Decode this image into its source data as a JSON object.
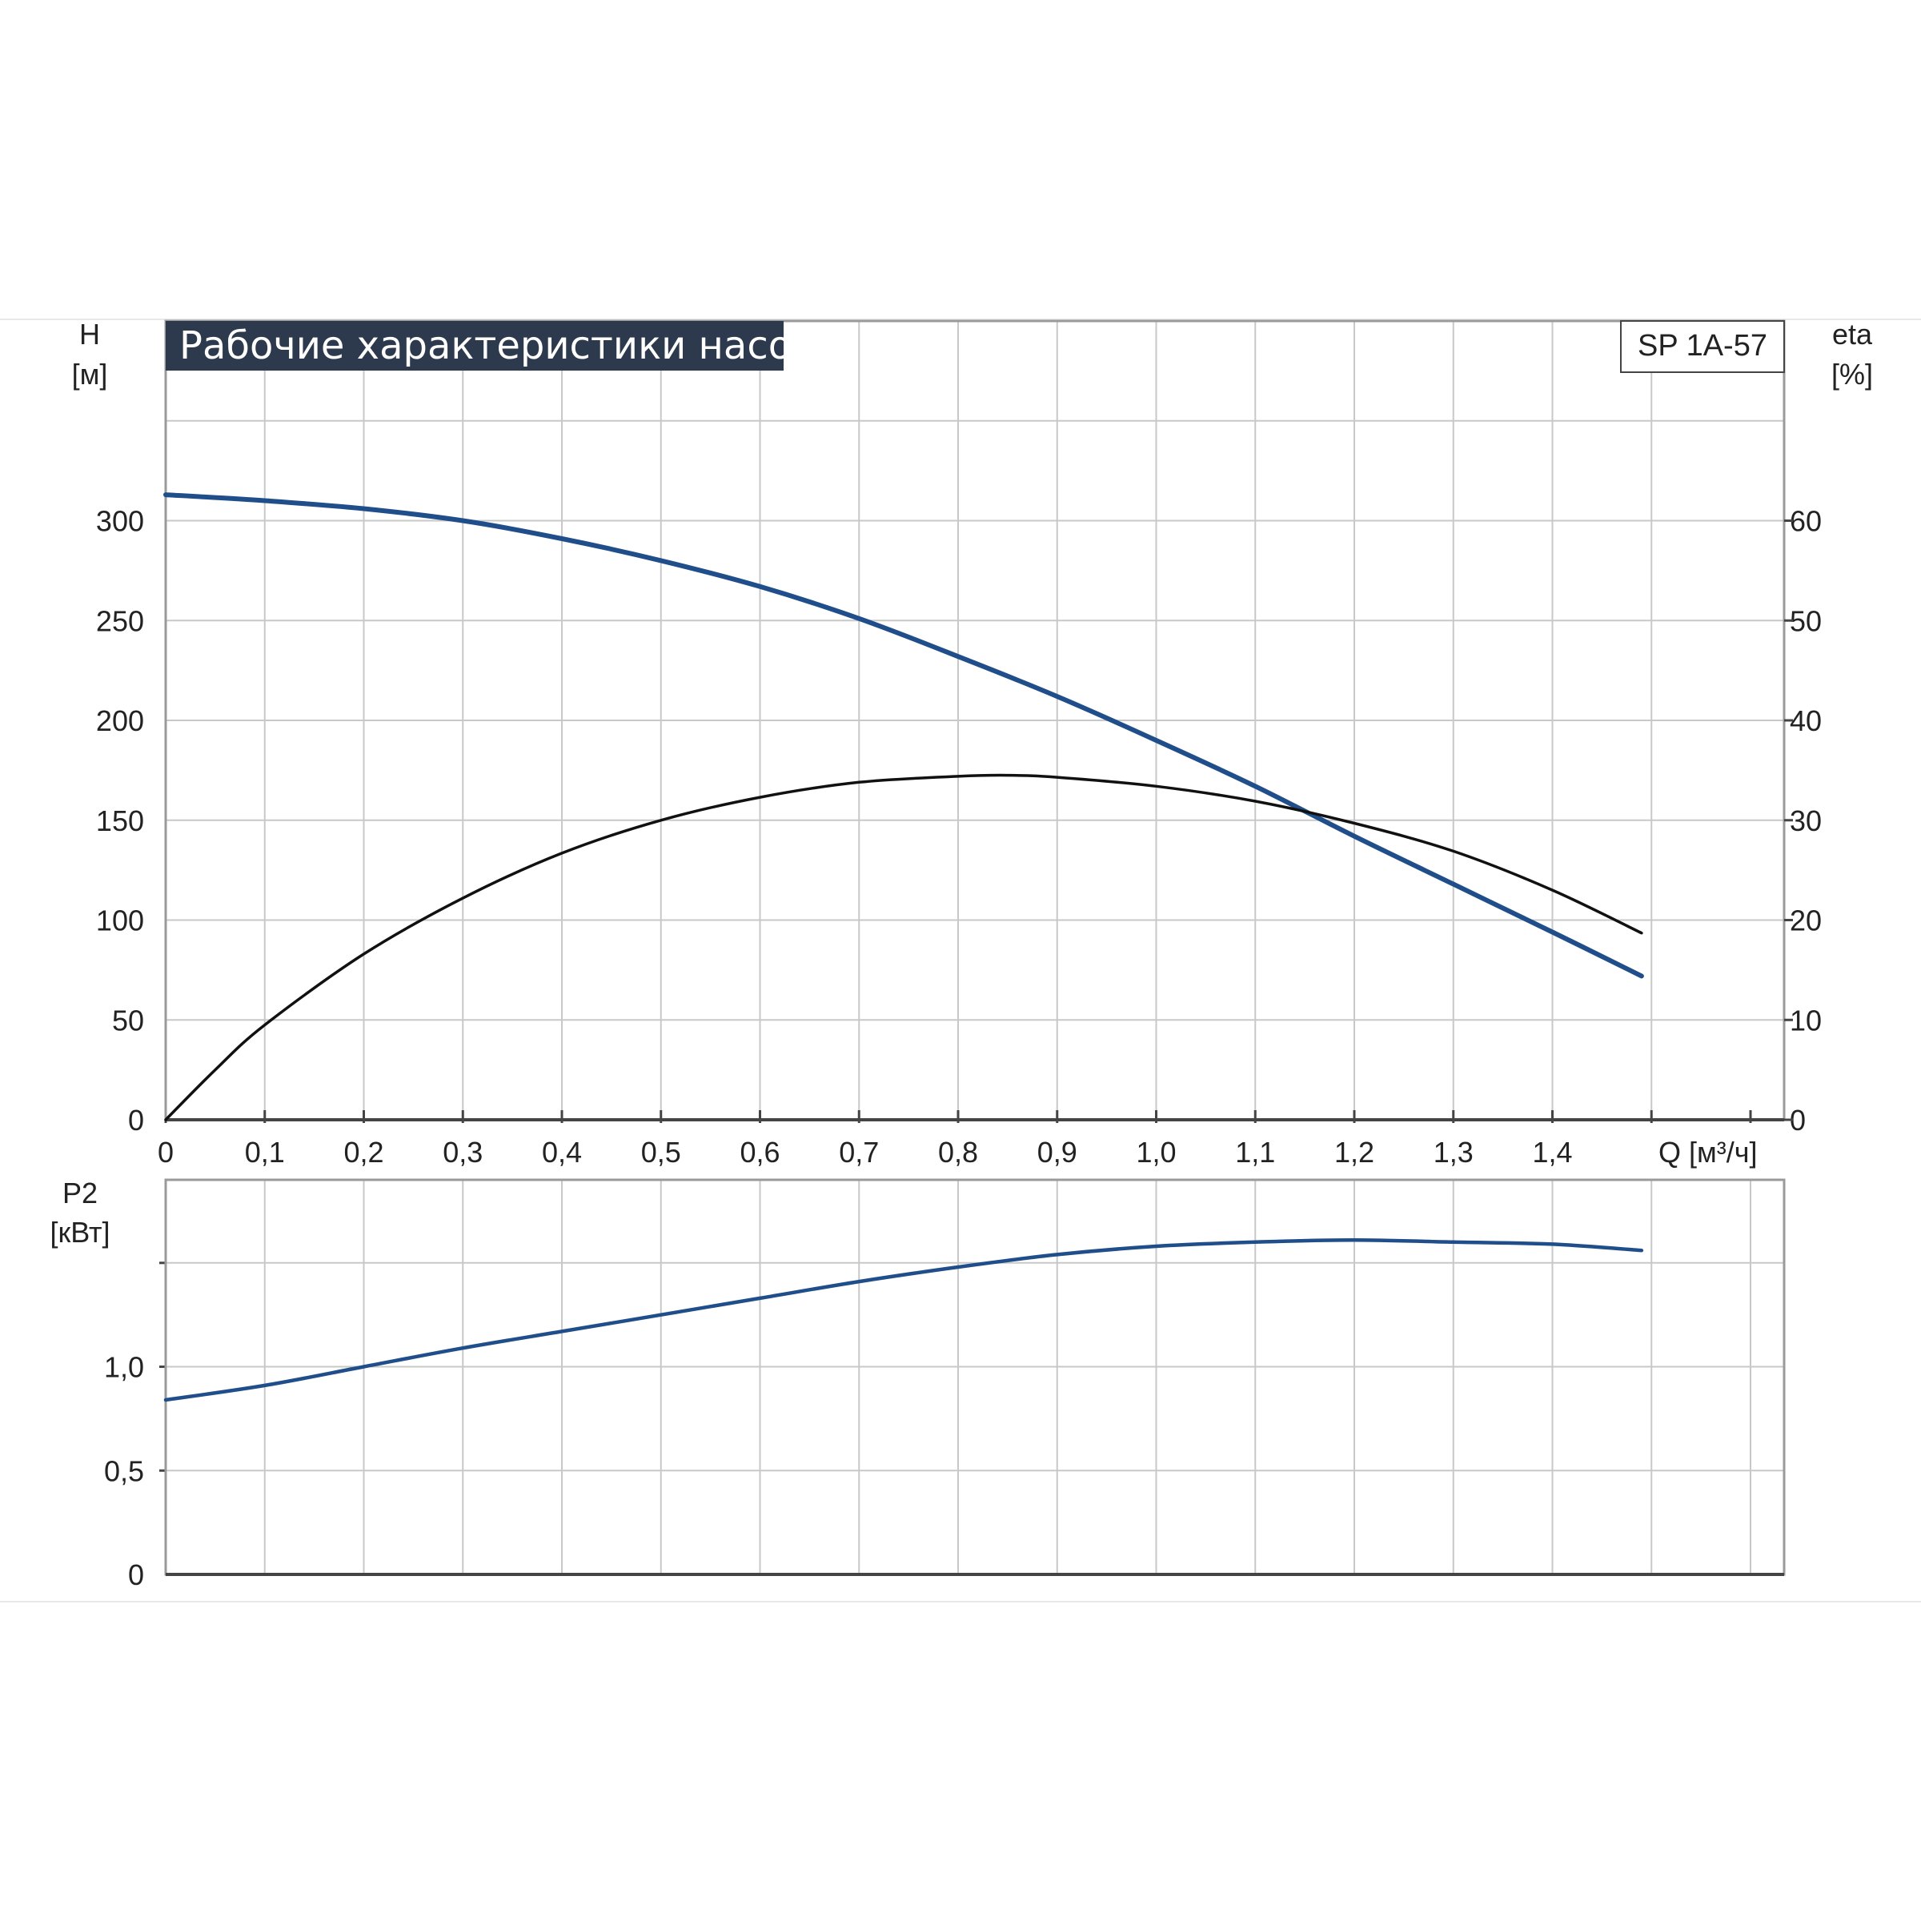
{
  "chart_data": [
    {
      "type": "line",
      "title": "Рабочие характеристики насоса",
      "model": "SP 1A-57",
      "xlabel": "Q [м³/ч]",
      "xlim": [
        0,
        1.6
      ],
      "xticks": [
        "0",
        "0,1",
        "0,2",
        "0,3",
        "0,4",
        "0,5",
        "0,6",
        "0,7",
        "0,8",
        "0,9",
        "1,0",
        "1,1",
        "1,2",
        "1,3",
        "1,4"
      ],
      "ylabel_left": [
        "H",
        "[м]"
      ],
      "ylim_left": [
        0,
        400
      ],
      "yticks_left": [
        "0",
        "50",
        "100",
        "150",
        "200",
        "250",
        "300"
      ],
      "ylabel_right": [
        "eta",
        "[%]"
      ],
      "ylim_right": [
        0,
        80
      ],
      "yticks_right": [
        "0",
        "10",
        "20",
        "30",
        "40",
        "50",
        "60"
      ],
      "grid": true,
      "series": [
        {
          "axis": "left",
          "color": "#1f4e8a",
          "x": [
            0,
            0.1,
            0.2,
            0.3,
            0.4,
            0.5,
            0.6,
            0.7,
            0.8,
            0.9,
            1.0,
            1.1,
            1.2,
            1.3,
            1.4,
            1.49
          ],
          "y": [
            313,
            310,
            306,
            300,
            291,
            280,
            267,
            251,
            232,
            212,
            190,
            167,
            142,
            118,
            94,
            72
          ]
        },
        {
          "axis": "right",
          "color": "#111111",
          "x": [
            0,
            0.05,
            0.1,
            0.2,
            0.3,
            0.4,
            0.5,
            0.6,
            0.7,
            0.8,
            0.85,
            0.9,
            1.0,
            1.1,
            1.2,
            1.3,
            1.4,
            1.49
          ],
          "y": [
            0,
            5,
            9.5,
            16.6,
            22.2,
            26.7,
            30,
            32.3,
            33.8,
            34.4,
            34.5,
            34.3,
            33.4,
            31.9,
            29.7,
            26.9,
            23,
            18.7
          ]
        }
      ]
    },
    {
      "type": "line",
      "xlim": [
        0,
        1.6
      ],
      "ylabel": [
        "P2",
        "[кВт]"
      ],
      "ylim": [
        0,
        1.9
      ],
      "yticks": [
        "0",
        "0,5",
        "1,0"
      ],
      "grid": true,
      "series": [
        {
          "color": "#1f4e8a",
          "x": [
            0,
            0.1,
            0.2,
            0.3,
            0.4,
            0.5,
            0.6,
            0.7,
            0.8,
            0.9,
            1.0,
            1.1,
            1.2,
            1.3,
            1.4,
            1.49
          ],
          "y": [
            0.84,
            0.91,
            1.0,
            1.09,
            1.17,
            1.25,
            1.33,
            1.41,
            1.48,
            1.54,
            1.58,
            1.6,
            1.61,
            1.6,
            1.59,
            1.56
          ]
        }
      ]
    }
  ]
}
